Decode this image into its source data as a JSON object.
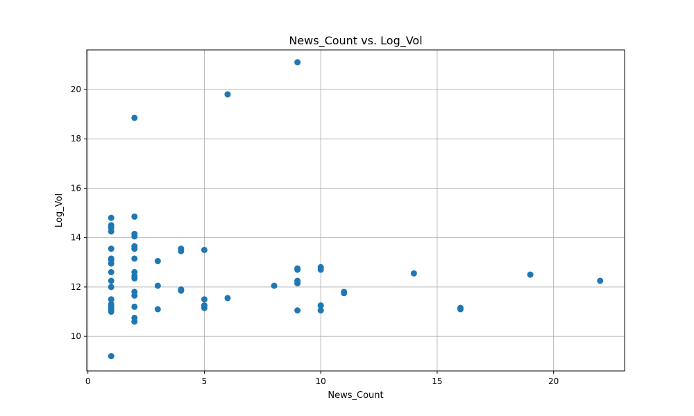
{
  "chart_data": {
    "type": "scatter",
    "title": "News_Count vs. Log_Vol",
    "xlabel": "News_Count",
    "ylabel": "Log_Vol",
    "xlim": [
      -0.05,
      23.05
    ],
    "ylim": [
      8.6,
      21.6
    ],
    "xticks": [
      0,
      5,
      10,
      15,
      20
    ],
    "yticks": [
      10,
      12,
      14,
      16,
      18,
      20
    ],
    "grid": true,
    "marker_color": "#1f77b4",
    "series": [
      {
        "name": "Log_Vol",
        "points": [
          [
            1,
            9.2
          ],
          [
            1,
            11.0
          ],
          [
            1,
            11.1
          ],
          [
            1,
            11.2
          ],
          [
            1,
            11.3
          ],
          [
            1,
            11.5
          ],
          [
            1,
            12.0
          ],
          [
            1,
            12.25
          ],
          [
            1,
            12.6
          ],
          [
            1,
            12.95
          ],
          [
            1,
            13.1
          ],
          [
            1,
            13.15
          ],
          [
            1,
            13.55
          ],
          [
            1,
            14.25
          ],
          [
            1,
            14.4
          ],
          [
            1,
            14.5
          ],
          [
            1,
            14.8
          ],
          [
            2,
            10.6
          ],
          [
            2,
            10.75
          ],
          [
            2,
            11.2
          ],
          [
            2,
            11.65
          ],
          [
            2,
            11.8
          ],
          [
            2,
            12.35
          ],
          [
            2,
            12.45
          ],
          [
            2,
            12.6
          ],
          [
            2,
            13.15
          ],
          [
            2,
            13.55
          ],
          [
            2,
            13.65
          ],
          [
            2,
            14.05
          ],
          [
            2,
            14.15
          ],
          [
            2,
            14.85
          ],
          [
            2,
            18.85
          ],
          [
            3,
            11.1
          ],
          [
            3,
            12.05
          ],
          [
            3,
            13.05
          ],
          [
            4,
            11.85
          ],
          [
            4,
            11.9
          ],
          [
            4,
            13.45
          ],
          [
            4,
            13.55
          ],
          [
            5,
            11.15
          ],
          [
            5,
            11.25
          ],
          [
            5,
            11.5
          ],
          [
            5,
            13.5
          ],
          [
            6,
            11.55
          ],
          [
            6,
            19.8
          ],
          [
            8,
            12.05
          ],
          [
            9,
            11.05
          ],
          [
            9,
            12.15
          ],
          [
            9,
            12.25
          ],
          [
            9,
            12.7
          ],
          [
            9,
            12.75
          ],
          [
            9,
            21.1
          ],
          [
            10,
            11.05
          ],
          [
            10,
            11.25
          ],
          [
            10,
            12.7
          ],
          [
            10,
            12.8
          ],
          [
            11,
            11.75
          ],
          [
            11,
            11.8
          ],
          [
            14,
            12.55
          ],
          [
            16,
            11.1
          ],
          [
            16,
            11.15
          ],
          [
            19,
            12.5
          ],
          [
            22,
            12.25
          ]
        ]
      }
    ]
  }
}
